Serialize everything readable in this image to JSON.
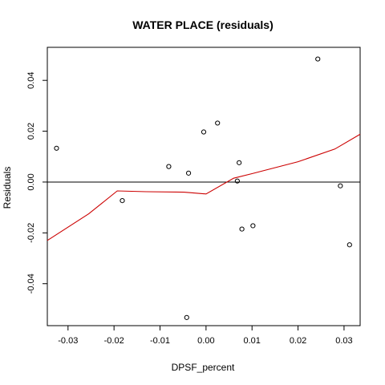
{
  "chart_data": {
    "type": "scatter",
    "title": "WATER PLACE (residuals)",
    "xlabel": "DPSF_percent",
    "ylabel": "Residuals",
    "xlim": [
      -0.0345,
      0.0335
    ],
    "ylim": [
      -0.0565,
      0.053
    ],
    "x_ticks": [
      -0.03,
      -0.02,
      -0.01,
      0.0,
      0.01,
      0.02,
      0.03
    ],
    "x_tick_labels": [
      "-0.03",
      "-0.02",
      "-0.01",
      "0.00",
      "0.01",
      "0.02",
      "0.03"
    ],
    "y_ticks": [
      -0.04,
      -0.02,
      0.0,
      0.02,
      0.04
    ],
    "y_tick_labels": [
      "-0.04",
      "-0.02",
      "0.00",
      "0.02",
      "0.04"
    ],
    "reference_line_y": 0,
    "grid": false,
    "points": [
      {
        "x": -0.0325,
        "y": 0.0133
      },
      {
        "x": -0.0182,
        "y": -0.0073
      },
      {
        "x": -0.0081,
        "y": 0.0061
      },
      {
        "x": -0.0038,
        "y": 0.0035
      },
      {
        "x": -0.0042,
        "y": -0.0533
      },
      {
        "x": -0.0005,
        "y": 0.0197
      },
      {
        "x": 0.0025,
        "y": 0.0232
      },
      {
        "x": 0.0068,
        "y": 0.0004
      },
      {
        "x": 0.0072,
        "y": 0.0076
      },
      {
        "x": 0.0078,
        "y": -0.0185
      },
      {
        "x": 0.0102,
        "y": -0.0172
      },
      {
        "x": 0.0243,
        "y": 0.0484
      },
      {
        "x": 0.0292,
        "y": -0.0015
      },
      {
        "x": 0.0312,
        "y": -0.0247
      }
    ],
    "smooth_line": {
      "color": "#cc0000",
      "x": [
        -0.0345,
        -0.0255,
        -0.0193,
        -0.013,
        -0.0048,
        0.0,
        0.006,
        0.01,
        0.02,
        0.028,
        0.0335
      ],
      "y": [
        -0.023,
        -0.0125,
        -0.0035,
        -0.0038,
        -0.004,
        -0.0047,
        0.0015,
        0.0033,
        0.008,
        0.013,
        0.0188
      ]
    }
  }
}
